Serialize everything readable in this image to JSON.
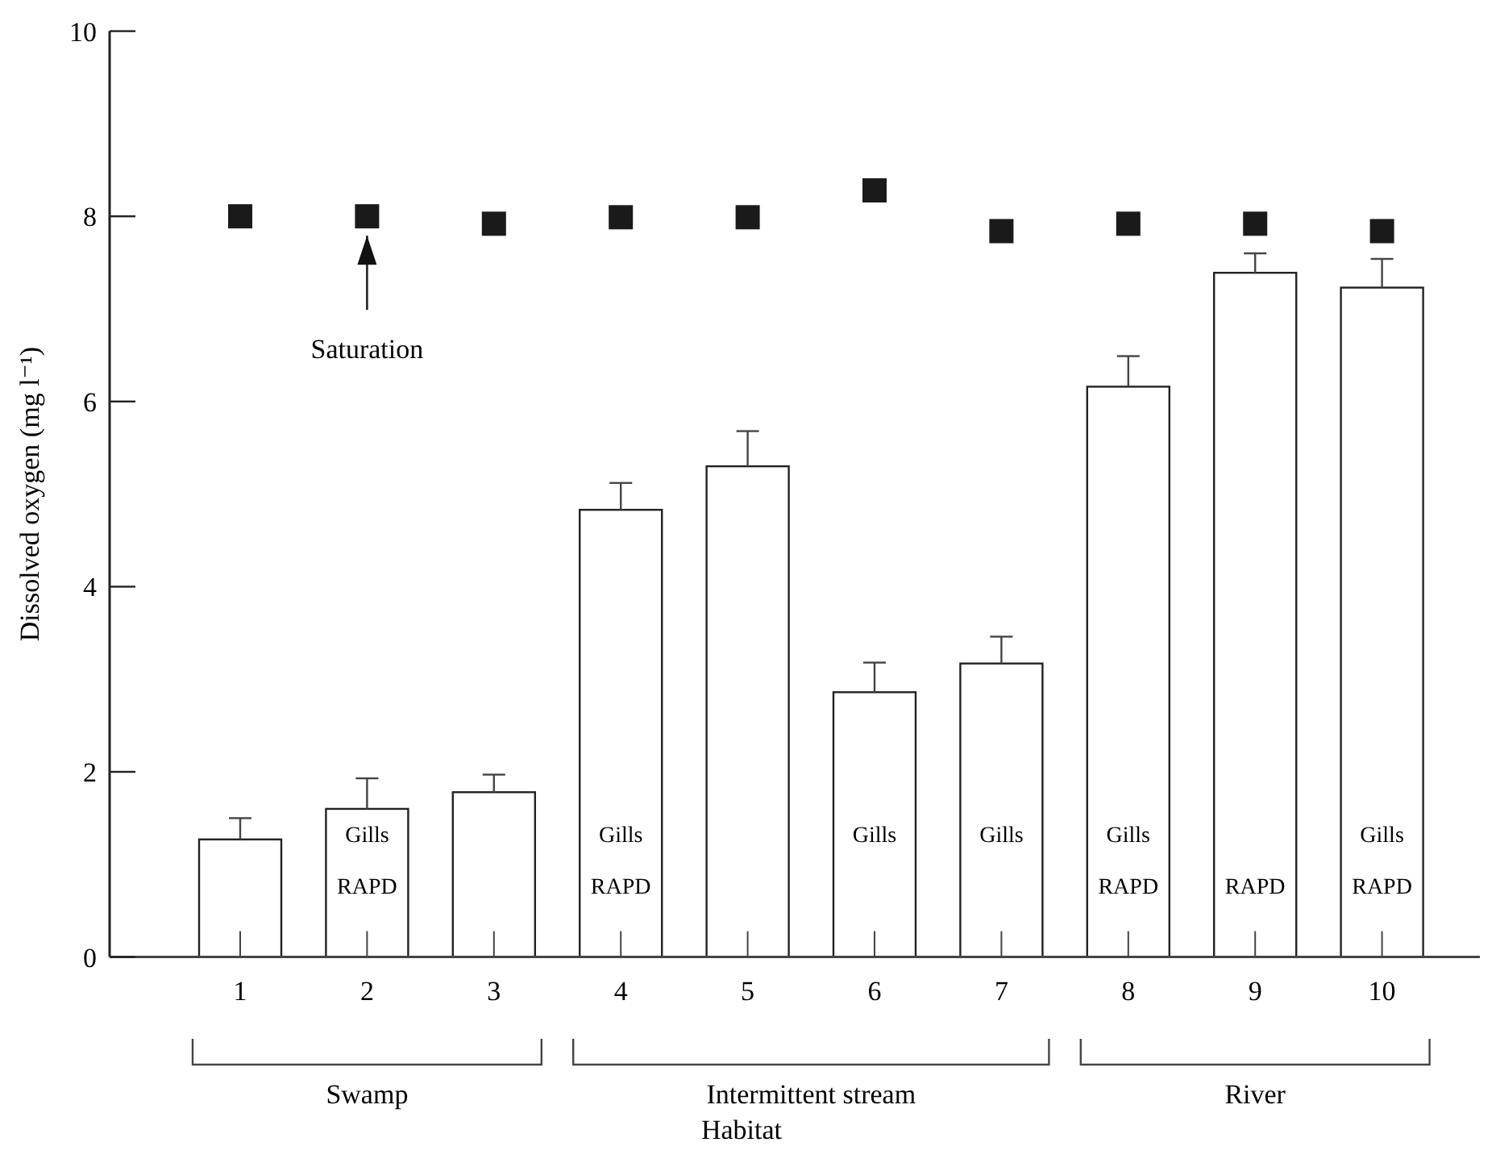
{
  "chart_data": {
    "type": "bar",
    "xlabel": "Habitat",
    "ylabel": "Dissolved oxygen (mg l⁻¹)",
    "categories": [
      "1",
      "2",
      "3",
      "4",
      "5",
      "6",
      "7",
      "8",
      "9",
      "10"
    ],
    "series": [
      {
        "type": "bar",
        "color": "#ffffff",
        "values": [
          1.27,
          1.6,
          1.78,
          4.83,
          5.3,
          2.86,
          3.17,
          6.16,
          7.39,
          7.23
        ],
        "errors": [
          [
            1.27,
            1.5
          ],
          [
            1.6,
            1.93
          ],
          [
            1.78,
            1.97
          ],
          [
            4.83,
            5.12
          ],
          [
            5.3,
            5.68
          ],
          [
            2.86,
            3.18
          ],
          [
            3.17,
            3.46
          ],
          [
            6.16,
            6.49
          ],
          [
            7.39,
            7.6
          ],
          [
            7.23,
            7.54
          ]
        ]
      },
      {
        "type": "scatter",
        "color": "#1a1a1a",
        "marker": "square",
        "x": [
          "1",
          "2",
          "3",
          "4",
          "5",
          "6",
          "7",
          "8",
          "9",
          "10"
        ],
        "values": [
          8.0,
          8.0,
          7.92,
          7.99,
          7.99,
          8.28,
          7.84,
          7.92,
          7.92,
          7.84
        ]
      }
    ],
    "ylim": [
      0,
      10
    ],
    "yticks": [
      0,
      2,
      4,
      6,
      8,
      10
    ],
    "grid": false,
    "annotations": [
      "Saturation",
      "Gills",
      "RAPD",
      "Gills",
      "RAPD",
      "Gills",
      "Gills",
      "Gills",
      "RAPD",
      "RAPD",
      "Gills",
      "RAPD",
      "Swamp",
      "Intermittent stream",
      "River"
    ]
  }
}
